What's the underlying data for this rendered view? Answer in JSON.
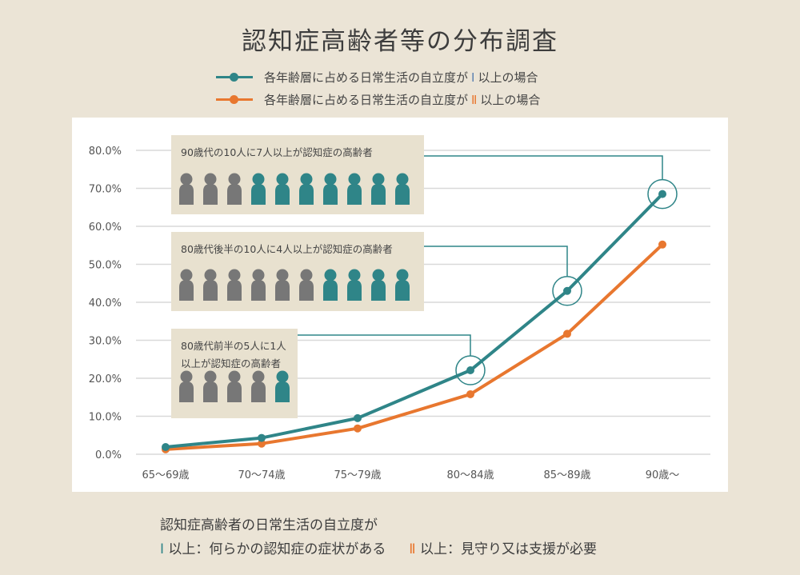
{
  "title": "認知症高齢者等の分布調査",
  "legend": [
    {
      "prefix": "各年齢層に占める日常生活の自立度が",
      "mark": "Ⅰ",
      "suffix": "以上の場合",
      "color": "#2f8588"
    },
    {
      "prefix": "各年齢層に占める日常生活の自立度が",
      "mark": "Ⅱ",
      "suffix": "以上の場合",
      "color": "#e8772f"
    }
  ],
  "chart_data": {
    "type": "line",
    "categories": [
      "65～69歳",
      "70～74歳",
      "75～79歳",
      "80～84歳",
      "85～89歳",
      "90歳～"
    ],
    "series": [
      {
        "name": "各年齢層に占める日常生活の自立度がⅠ以上の場合",
        "values": [
          1.9,
          4.3,
          9.5,
          22.1,
          43.0,
          68.5
        ],
        "color": "#2f8588"
      },
      {
        "name": "各年齢層に占める日常生活の自立度がⅡ以上の場合",
        "values": [
          1.3,
          2.8,
          6.8,
          15.8,
          31.7,
          55.2
        ],
        "color": "#e8772f"
      }
    ],
    "ylim": [
      0,
      80
    ],
    "yticks": [
      "0.0%",
      "10.0%",
      "20.0%",
      "30.0%",
      "40.0%",
      "50.0%",
      "60.0%",
      "70.0%",
      "80.0%"
    ],
    "grid": true,
    "highlighted_points": [
      3,
      4,
      5
    ],
    "annotations": [
      {
        "lines": [
          "90歳代の10人に7人以上が認知症の高齢者"
        ],
        "total": 10,
        "affected": 7,
        "point_index": 5
      },
      {
        "lines": [
          "80歳代後半の10人に4人以上が認知症の高齢者"
        ],
        "total": 10,
        "affected": 4,
        "point_index": 4
      },
      {
        "lines": [
          "80歳代前半の5人に1人",
          "以上が認知症の高齢者"
        ],
        "total": 5,
        "affected": 1,
        "point_index": 3
      }
    ],
    "person_colors": {
      "affected": "#2f8588",
      "unaffected": "#777777"
    }
  },
  "footer": {
    "heading": "認知症高齢者の日常生活の自立度が",
    "item1_mark": "Ⅰ",
    "item1_text": "以上：何らかの認知症の症状がある",
    "item2_mark": "Ⅱ",
    "item2_text": "以上：見守り又は支援が必要"
  }
}
